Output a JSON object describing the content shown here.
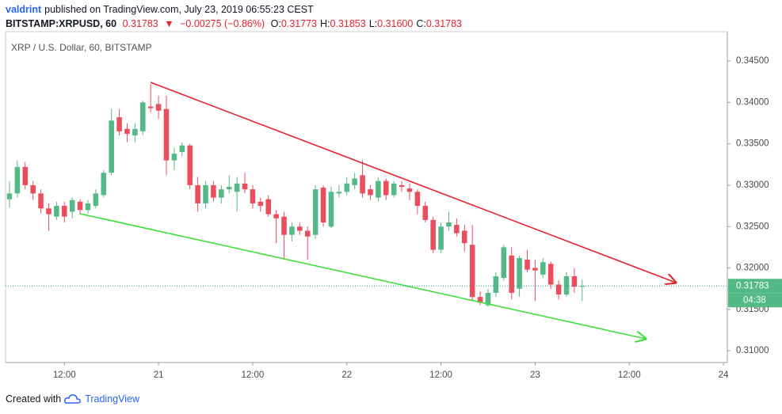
{
  "header": {
    "author": "valdrint",
    "published": "published on TradingView.com, July 23, 2019 06:55:23 CEST",
    "symbol": "BITSTAMP:XRPUSD, 60",
    "last": "0.31783",
    "arrow": "▼",
    "change": "−0.00275 (−0.86%)",
    "ohlc": [
      {
        "label": "O:",
        "value": "0.31773"
      },
      {
        "label": "H:",
        "value": "0.31853"
      },
      {
        "label": "L:",
        "value": "0.31600"
      },
      {
        "label": "C:",
        "value": "0.31783"
      }
    ]
  },
  "chart_data": {
    "type": "candlestick",
    "title": "XRP / U.S. Dollar, 60, BITSTAMP",
    "up_color": "#53b987",
    "down_color": "#eb4d5c",
    "grid": false,
    "countdown": "04:38",
    "categories": [
      null,
      null,
      null,
      null,
      null,
      null,
      null,
      "12:00",
      null,
      null,
      null,
      null,
      null,
      null,
      null,
      null,
      null,
      null,
      null,
      "21",
      null,
      null,
      null,
      null,
      null,
      null,
      null,
      null,
      null,
      null,
      null,
      "12:00",
      null,
      null,
      null,
      null,
      null,
      null,
      null,
      null,
      null,
      null,
      null,
      "22",
      null,
      null,
      null,
      null,
      null,
      null,
      null,
      null,
      null,
      null,
      null,
      "12:00",
      null,
      null,
      null,
      null,
      null,
      null,
      null,
      null,
      null,
      null,
      null,
      "23",
      null,
      null,
      null,
      null,
      null,
      null,
      null,
      null,
      null,
      null,
      null,
      "12:00",
      null,
      null,
      null,
      null,
      null,
      null,
      null,
      null,
      null,
      null,
      null,
      "24"
    ],
    "open": [
      0.3283,
      0.329,
      0.3322,
      0.33,
      0.329,
      0.3272,
      0.3262,
      0.3275,
      0.3268,
      0.328,
      0.327,
      0.3275,
      0.3288,
      0.3315,
      0.3382,
      0.3368,
      0.336,
      0.3365,
      0.3395,
      0.3398,
      0.3392,
      0.333,
      0.334,
      0.3348,
      0.33,
      0.3278,
      0.33,
      0.3285,
      0.3295,
      0.3292,
      0.3302,
      0.3295,
      0.328,
      0.3283,
      0.3265,
      0.3262,
      0.324,
      0.325,
      0.3245,
      0.324,
      0.3297,
      0.325,
      0.329,
      0.3292,
      0.33,
      0.3312,
      0.3295,
      0.3285,
      0.3305,
      0.3288,
      0.33,
      0.3296,
      0.3292,
      0.3275,
      0.3258,
      0.3222,
      0.325,
      0.3252,
      0.3245,
      0.3228,
      0.3165,
      0.3155,
      0.317,
      0.3188,
      0.3215,
      0.3175,
      0.321,
      0.32,
      0.3192,
      0.3205,
      0.318,
      0.3168,
      0.319,
      0.31773,
      null,
      null,
      null,
      null,
      null,
      null,
      null,
      null,
      null,
      null,
      null,
      null,
      null,
      null,
      null,
      null,
      null,
      null
    ],
    "high": [
      0.3305,
      0.333,
      0.3328,
      0.3305,
      0.3295,
      0.3278,
      0.328,
      0.328,
      0.3285,
      0.3283,
      0.3282,
      0.3295,
      0.3318,
      0.3392,
      0.3392,
      0.3375,
      0.3375,
      0.3402,
      0.3422,
      0.3408,
      0.3408,
      0.3345,
      0.3352,
      0.335,
      0.331,
      0.3305,
      0.3305,
      0.33,
      0.3312,
      0.331,
      0.3315,
      0.33,
      0.3285,
      0.3288,
      0.327,
      0.3268,
      0.3255,
      0.3255,
      0.325,
      0.33,
      0.33,
      0.3298,
      0.33,
      0.331,
      0.3315,
      0.333,
      0.33,
      0.331,
      0.3308,
      0.3305,
      0.3305,
      0.3302,
      0.3295,
      0.328,
      0.3262,
      0.3255,
      0.3268,
      0.326,
      0.3252,
      0.3252,
      0.3172,
      0.3175,
      0.3195,
      0.3228,
      0.3225,
      0.3215,
      0.3222,
      0.321,
      0.3212,
      0.3208,
      0.3185,
      0.3195,
      0.32,
      0.31853,
      null,
      null,
      null,
      null,
      null,
      null,
      null,
      null,
      null,
      null,
      null,
      null,
      null,
      null,
      null,
      null,
      null,
      null
    ],
    "low": [
      0.3273,
      0.3285,
      0.3295,
      0.3282,
      0.3266,
      0.3245,
      0.3258,
      0.3255,
      0.326,
      0.3265,
      0.3266,
      0.3272,
      0.3285,
      0.3312,
      0.336,
      0.3352,
      0.3352,
      0.336,
      0.3388,
      0.338,
      0.3312,
      0.3318,
      0.3335,
      0.3295,
      0.3268,
      0.3272,
      0.328,
      0.3278,
      0.329,
      0.3268,
      0.329,
      0.3272,
      0.3268,
      0.3262,
      0.323,
      0.321,
      0.3232,
      0.324,
      0.321,
      0.3235,
      0.325,
      0.3248,
      0.3285,
      0.3288,
      0.3295,
      0.3285,
      0.3282,
      0.328,
      0.3282,
      0.3285,
      0.3292,
      0.3282,
      0.3265,
      0.3255,
      0.3218,
      0.3218,
      0.3245,
      0.3238,
      0.322,
      0.316,
      0.3155,
      0.3153,
      0.3165,
      0.3185,
      0.3162,
      0.3165,
      0.3195,
      0.316,
      0.3188,
      0.3175,
      0.3162,
      0.3165,
      0.317,
      0.316,
      null,
      null,
      null,
      null,
      null,
      null,
      null,
      null,
      null,
      null,
      null,
      null,
      null,
      null,
      null,
      null,
      null,
      null
    ],
    "close": [
      0.329,
      0.3322,
      0.33,
      0.329,
      0.3272,
      0.3265,
      0.3275,
      0.3262,
      0.3282,
      0.327,
      0.3278,
      0.329,
      0.3315,
      0.3378,
      0.3365,
      0.3362,
      0.3368,
      0.34,
      0.3393,
      0.339,
      0.333,
      0.3338,
      0.3348,
      0.33,
      0.3278,
      0.33,
      0.3285,
      0.3295,
      0.3298,
      0.3302,
      0.3295,
      0.3278,
      0.3275,
      0.3265,
      0.326,
      0.324,
      0.325,
      0.3245,
      0.3238,
      0.3295,
      0.3255,
      0.3292,
      0.3292,
      0.3302,
      0.3308,
      0.329,
      0.3288,
      0.3305,
      0.3288,
      0.3302,
      0.3298,
      0.3292,
      0.3275,
      0.3258,
      0.3222,
      0.325,
      0.3255,
      0.3242,
      0.323,
      0.3165,
      0.3158,
      0.317,
      0.319,
      0.3225,
      0.317,
      0.3212,
      0.3198,
      0.3197,
      0.3207,
      0.318,
      0.3168,
      0.319,
      0.31773,
      0.31783,
      null,
      null,
      null,
      null,
      null,
      null,
      null,
      null,
      null,
      null,
      null,
      null,
      null,
      null,
      null,
      null,
      null,
      null
    ],
    "ylim": [
      0.30858,
      0.34854
    ],
    "yticks": [
      {
        "value": 0.31,
        "label": "0.31000"
      },
      {
        "value": 0.315,
        "label": "0.31500"
      },
      {
        "value": 0.32,
        "label": "0.32000"
      },
      {
        "value": 0.325,
        "label": "0.32500"
      },
      {
        "value": 0.33,
        "label": "0.33000"
      },
      {
        "value": 0.335,
        "label": "0.33500"
      },
      {
        "value": 0.34,
        "label": "0.34000"
      },
      {
        "value": 0.345,
        "label": "0.34500"
      }
    ]
  },
  "footer": {
    "created": "Created with",
    "brand": "TradingView"
  }
}
